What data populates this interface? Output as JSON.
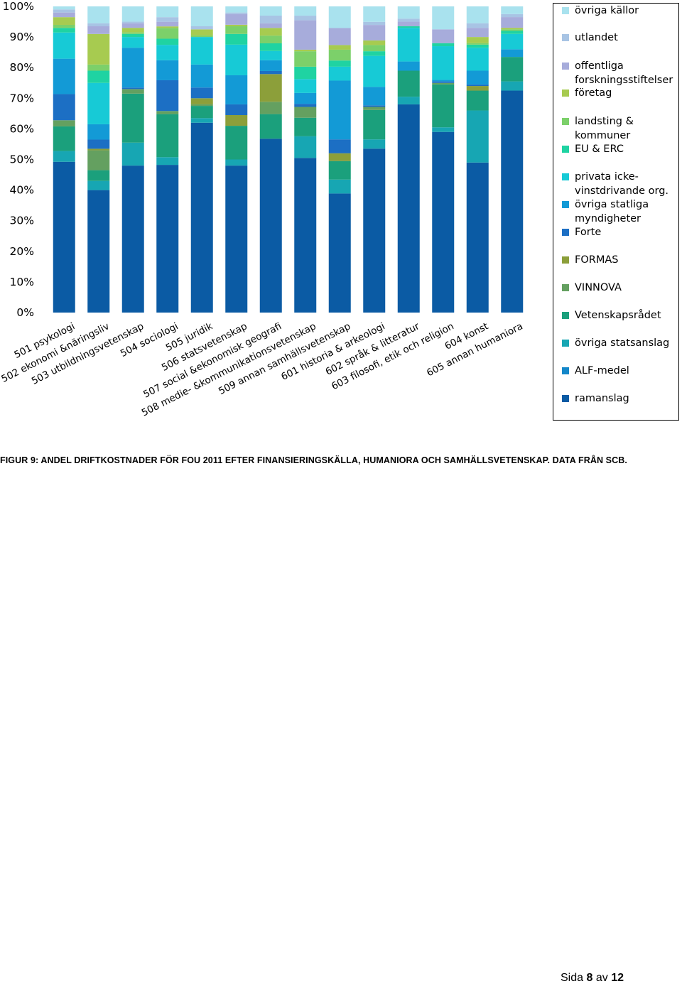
{
  "chart_data": {
    "type": "bar",
    "stacked": true,
    "percent": true,
    "y_ticks": [
      "0%",
      "10%",
      "20%",
      "30%",
      "40%",
      "50%",
      "60%",
      "70%",
      "80%",
      "90%",
      "100%"
    ],
    "ylim": [
      0,
      100
    ],
    "legend_placement": "right",
    "grid": false,
    "categories": [
      "501 psykologi",
      "502 ekonomi &näringsliv",
      "503 utbildningsvetenskap",
      "504 sociologi",
      "505 juridik",
      "506 statsvetenskap",
      "507 social &ekonomisk geografi",
      "508 medie- &kommunikationsvetenskap",
      "509 annan samhällsvetenskap",
      "601 historia & arkeologi",
      "602 språk & litteratur",
      "603 filosofi, etik och religion",
      "604 konst",
      "605 annan humaniora"
    ],
    "series": [
      {
        "name": "ramanslag",
        "color": "#0b5ba4",
        "values": [
          49,
          40,
          48,
          48,
          62,
          48,
          56.5,
          50,
          38.5,
          53,
          68,
          59,
          49,
          72.5
        ]
      },
      {
        "name": "ALF-medel",
        "color": "#1487c9",
        "values": [
          0,
          0,
          0,
          0,
          0,
          0,
          0,
          0,
          0,
          0,
          0,
          0,
          0,
          0
        ]
      },
      {
        "name": "övriga statsanslag",
        "color": "#17a6b3",
        "values": [
          3.5,
          3,
          7.5,
          2.5,
          1.5,
          2,
          0,
          7,
          4.5,
          3,
          2.5,
          1.5,
          17,
          3
        ]
      },
      {
        "name": "Vetenskapsrådet",
        "color": "#1ba07c",
        "values": [
          8,
          3.5,
          16,
          14,
          4,
          11,
          8,
          6,
          6,
          9.5,
          8.5,
          14,
          6.5,
          8
        ]
      },
      {
        "name": "VINNOVA",
        "color": "#64a060",
        "values": [
          2,
          6.5,
          1.5,
          1,
          0.5,
          0,
          4,
          3.5,
          0,
          1,
          0,
          0.5,
          0,
          0
        ]
      },
      {
        "name": "FORMAS",
        "color": "#8c9f3a",
        "values": [
          0,
          0.5,
          0,
          0,
          2,
          3.5,
          9,
          0,
          2.5,
          0,
          0,
          0,
          1.5,
          0
        ]
      },
      {
        "name": "Forte",
        "color": "#1c6fc4",
        "values": [
          8.5,
          3,
          0.5,
          10,
          3.5,
          3.5,
          1,
          1,
          4.5,
          0.5,
          0,
          0.5,
          0.5,
          0
        ]
      },
      {
        "name": "övriga statliga myndigheter",
        "color": "#139ad6",
        "values": [
          11.5,
          5,
          13,
          6.5,
          7.5,
          9.5,
          3.5,
          3.5,
          19,
          6,
          3,
          0.5,
          4.5,
          2.5
        ]
      },
      {
        "name": "privata icke-vinstdrivande org.",
        "color": "#17cad6",
        "values": [
          8.5,
          13.5,
          3.5,
          5,
          9,
          10,
          3,
          4.5,
          4.5,
          10,
          11,
          11,
          7.5,
          5
        ]
      },
      {
        "name": "EU & ERC",
        "color": "#1fd3a2",
        "values": [
          1.5,
          4,
          1,
          2,
          0,
          3.5,
          2.5,
          4,
          2,
          1.5,
          0.5,
          1,
          1,
          1
        ]
      },
      {
        "name": "landsting & kommuner",
        "color": "#7cd06a",
        "values": [
          1,
          2,
          0.5,
          3.5,
          0.5,
          2.5,
          2.5,
          5,
          3.5,
          2,
          0,
          0,
          0.5,
          0.5
        ]
      },
      {
        "name": "företag",
        "color": "#a7cb50",
        "values": [
          2.5,
          10,
          1.5,
          0.5,
          2,
          0.5,
          2.5,
          0.5,
          1.5,
          1.5,
          0,
          0,
          2,
          0.5
        ]
      },
      {
        "name": "offentliga forskningsstiftelser",
        "color": "#a7acdb",
        "values": [
          1.5,
          2.5,
          1.5,
          1.5,
          0,
          3.5,
          1.5,
          9.5,
          5.5,
          5,
          1.5,
          4.5,
          3,
          3.5
        ]
      },
      {
        "name": "utlandet",
        "color": "#a8c4e4",
        "values": [
          1,
          1,
          0.5,
          1.5,
          1,
          0.5,
          2.5,
          1.5,
          0,
          1,
          1,
          0,
          1.5,
          1
        ]
      },
      {
        "name": "övriga källor",
        "color": "#a9e2ee",
        "values": [
          1,
          5.5,
          5,
          3.5,
          6.5,
          2,
          3,
          3,
          7,
          5,
          4,
          7.5,
          5.5,
          2.5
        ]
      }
    ]
  },
  "legend": [
    {
      "label": "övriga källor",
      "color": "#a9e2ee"
    },
    {
      "label": "utlandet",
      "color": "#a8c4e4"
    },
    {
      "label": "offentliga forskningsstiftelser",
      "color": "#a7acdb"
    },
    {
      "label": "företag",
      "color": "#a7cb50"
    },
    {
      "label": "landsting & kommuner",
      "color": "#7cd06a"
    },
    {
      "label": "EU & ERC",
      "color": "#1fd3a2"
    },
    {
      "label": "privata icke-vinstdrivande org.",
      "color": "#17cad6"
    },
    {
      "label": "övriga statliga myndigheter",
      "color": "#139ad6"
    },
    {
      "label": "Forte",
      "color": "#1c6fc4"
    },
    {
      "label": "FORMAS",
      "color": "#8c9f3a"
    },
    {
      "label": "VINNOVA",
      "color": "#64a060"
    },
    {
      "label": "Vetenskapsrådet",
      "color": "#1ba07c"
    },
    {
      "label": "övriga statsanslag",
      "color": "#17a6b3"
    },
    {
      "label": "ALF-medel",
      "color": "#1487c9"
    },
    {
      "label": "ramanslag",
      "color": "#0b5ba4"
    }
  ],
  "caption": "FIGUR 9: ANDEL DRIFTKOSTNADER FÖR FOU 2011 EFTER FINANSIERINGSKÄLLA, HUMANIORA OCH SAMHÄLLSVETENSKAP. DATA FRÅN SCB.",
  "footer": {
    "prefix": "Sida",
    "page": "8",
    "middle": "av",
    "total": "12"
  }
}
